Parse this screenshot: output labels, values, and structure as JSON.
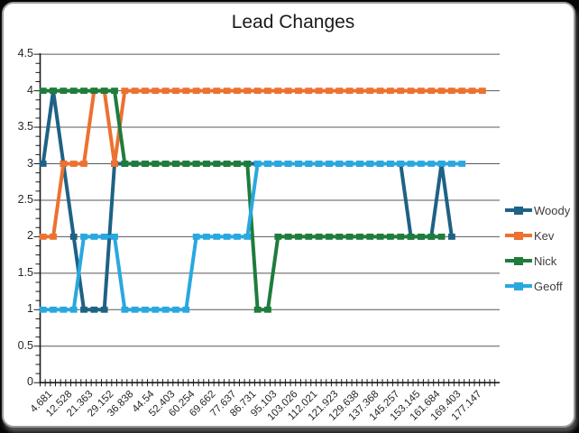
{
  "chart_data": {
    "type": "line",
    "title": "Lead Changes",
    "xlabel": "",
    "ylabel": "",
    "ylim": [
      0,
      4.5
    ],
    "y_tick_labels": [
      "4.5",
      "4",
      "3.5",
      "3",
      "2.5",
      "2",
      "1.5",
      "1",
      "0.5",
      "0"
    ],
    "y_tick_values": [
      4.5,
      4,
      3.5,
      3,
      2.5,
      2,
      1.5,
      1,
      0.5,
      0
    ],
    "grid": "on",
    "legend_position": "right",
    "n_points": 44,
    "x_label_every": 2,
    "categories": [
      "4.681",
      "12.528",
      "21.363",
      "29.152",
      "36.838",
      "44.54",
      "52.403",
      "60.254",
      "69.662",
      "77.637",
      "86.731",
      "95.103",
      "103.026",
      "112.021",
      "121.923",
      "129.638",
      "137.368",
      "145.257",
      "153.145",
      "161.684",
      "169.403",
      "177.147"
    ],
    "series": [
      {
        "name": "Woody",
        "color": "#1E6284",
        "values": [
          3,
          4,
          3,
          2,
          1,
          1,
          1,
          3,
          3,
          3,
          3,
          3,
          3,
          3,
          3,
          3,
          3,
          3,
          3,
          3,
          3,
          3,
          3,
          3,
          3,
          3,
          3,
          3,
          3,
          3,
          3,
          3,
          3,
          3,
          3,
          3,
          2,
          2,
          2,
          3,
          2,
          null,
          null,
          null
        ]
      },
      {
        "name": "Kev",
        "color": "#ED7130",
        "values": [
          2,
          2,
          3,
          3,
          3,
          4,
          4,
          3,
          4,
          4,
          4,
          4,
          4,
          4,
          4,
          4,
          4,
          4,
          4,
          4,
          4,
          4,
          4,
          4,
          4,
          4,
          4,
          4,
          4,
          4,
          4,
          4,
          4,
          4,
          4,
          4,
          4,
          4,
          4,
          4,
          4,
          4,
          4,
          4
        ]
      },
      {
        "name": "Nick",
        "color": "#1F7C3C",
        "values": [
          4,
          4,
          4,
          4,
          4,
          4,
          4,
          4,
          3,
          3,
          3,
          3,
          3,
          3,
          3,
          3,
          3,
          3,
          3,
          3,
          3,
          1,
          1,
          2,
          2,
          2,
          2,
          2,
          2,
          2,
          2,
          2,
          2,
          2,
          2,
          2,
          2,
          2,
          2,
          2,
          null,
          null,
          null,
          null
        ]
      },
      {
        "name": "Geoff",
        "color": "#29A8E0",
        "values": [
          1,
          1,
          1,
          1,
          2,
          2,
          2,
          2,
          1,
          1,
          1,
          1,
          1,
          1,
          1,
          2,
          2,
          2,
          2,
          2,
          2,
          3,
          3,
          3,
          3,
          3,
          3,
          3,
          3,
          3,
          3,
          3,
          3,
          3,
          3,
          3,
          3,
          3,
          3,
          3,
          3,
          3,
          null,
          null
        ]
      }
    ]
  }
}
